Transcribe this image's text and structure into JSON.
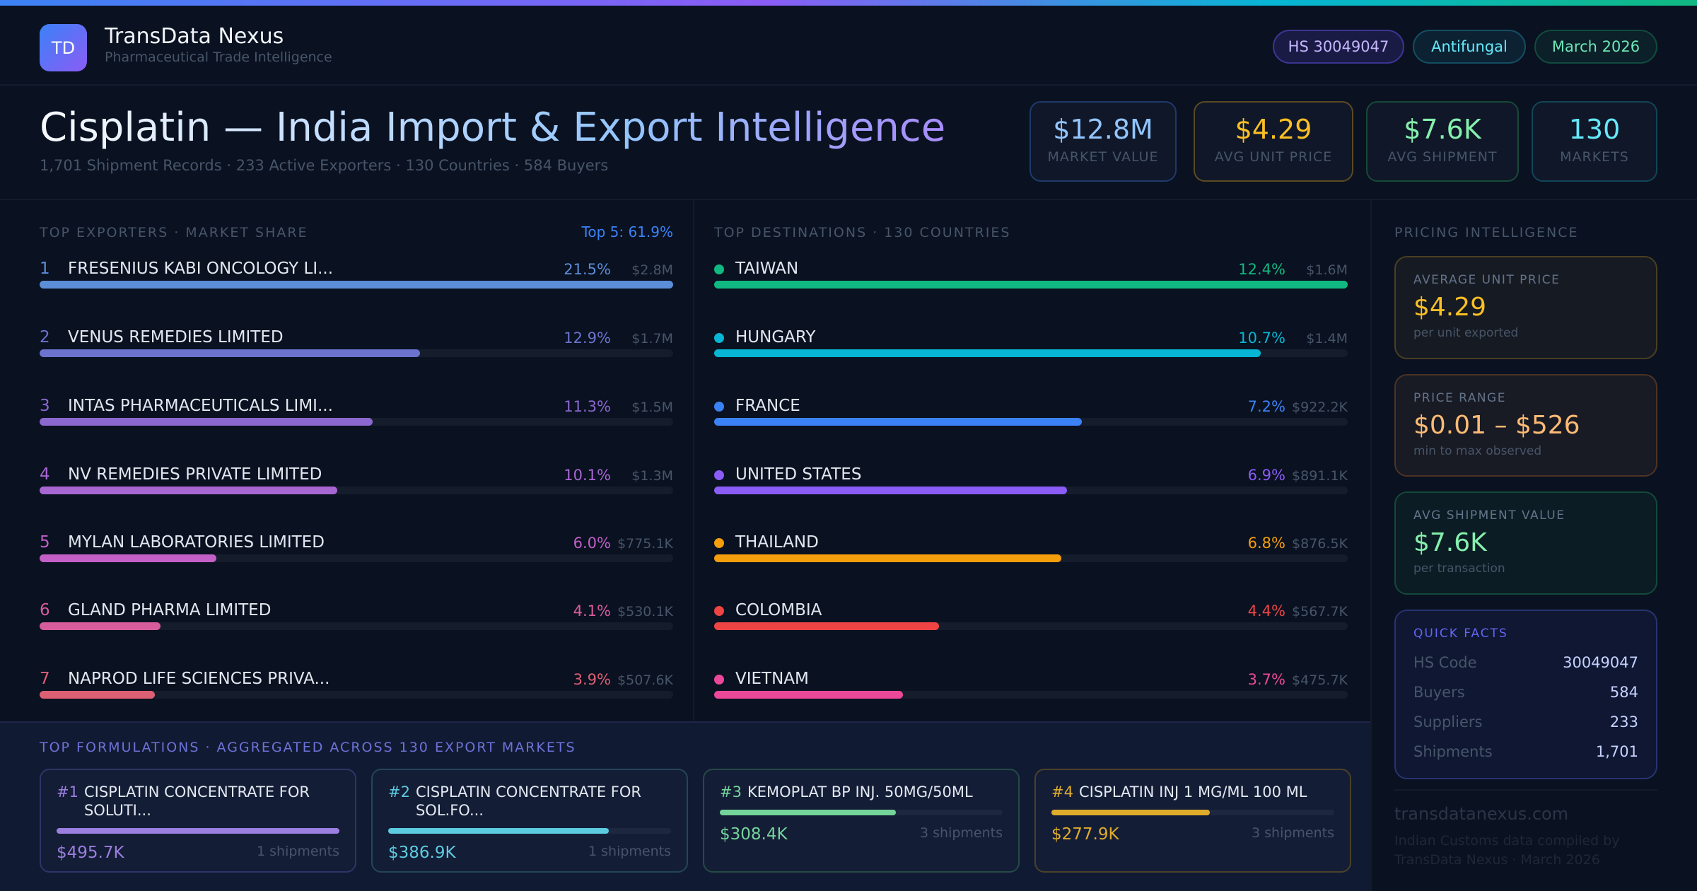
{
  "header": {
    "logo_text": "TD",
    "brand": "TransData Nexus",
    "tagline": "Pharmaceutical Trade Intelligence",
    "pills": [
      {
        "label": "HS 30049047",
        "color": "#c4b5fd"
      },
      {
        "label": "Antifungal",
        "color": "#67e8f9"
      },
      {
        "label": "March 2026",
        "color": "#6ee7b7"
      }
    ]
  },
  "hero": {
    "title": "Cisplatin — India Import & Export Intelligence",
    "subtitle": "1,701 Shipment Records · 233 Active Exporters · 130 Countries · 584 Buyers"
  },
  "kpis": [
    {
      "value": "$12.8M",
      "label": "MARKET VALUE",
      "color": "#93c5fd"
    },
    {
      "value": "$4.29",
      "label": "AVG UNIT PRICE",
      "color": "#fbbf24"
    },
    {
      "value": "$7.6K",
      "label": "AVG SHIPMENT",
      "color": "#86efac"
    },
    {
      "value": "130",
      "label": "MARKETS",
      "color": "#67e8f9"
    }
  ],
  "exporters": {
    "title": "TOP EXPORTERS · MARKET SHARE",
    "summary": "Top 5: 61.9%",
    "items": [
      {
        "rank": "1",
        "name": "FRESENIUS KABI ONCOLOGY LI...",
        "pct": "21.5%",
        "value": "$2.8M",
        "share": 21.5,
        "color": "#5b8dd9"
      },
      {
        "rank": "2",
        "name": "VENUS REMEDIES LIMITED",
        "pct": "12.9%",
        "value": "$1.7M",
        "share": 12.9,
        "color": "#6b73cf"
      },
      {
        "rank": "3",
        "name": "INTAS PHARMACEUTICALS LIMI...",
        "pct": "11.3%",
        "value": "$1.5M",
        "share": 11.3,
        "color": "#8b67d0"
      },
      {
        "rank": "4",
        "name": "NV REMEDIES PRIVATE LIMITED",
        "pct": "10.1%",
        "value": "$1.3M",
        "share": 10.1,
        "color": "#a866d2"
      },
      {
        "rank": "5",
        "name": "MYLAN LABORATORIES LIMITED",
        "pct": "6.0%",
        "value": "$775.1K",
        "share": 6.0,
        "color": "#c260c8"
      },
      {
        "rank": "6",
        "name": "GLAND PHARMA LIMITED",
        "pct": "4.1%",
        "value": "$530.1K",
        "share": 4.1,
        "color": "#d65c9c"
      },
      {
        "rank": "7",
        "name": "NAPROD LIFE SCIENCES PRIVA...",
        "pct": "3.9%",
        "value": "$507.6K",
        "share": 3.9,
        "color": "#dd5f73"
      }
    ]
  },
  "destinations": {
    "title": "TOP DESTINATIONS · 130 COUNTRIES",
    "items": [
      {
        "name": "TAIWAN",
        "pct": "12.4%",
        "value": "$1.6M",
        "share": 12.4,
        "color": "#10b981"
      },
      {
        "name": "HUNGARY",
        "pct": "10.7%",
        "value": "$1.4M",
        "share": 10.7,
        "color": "#06b6d4"
      },
      {
        "name": "FRANCE",
        "pct": "7.2%",
        "value": "$922.2K",
        "share": 7.2,
        "color": "#3b82f6"
      },
      {
        "name": "UNITED STATES",
        "pct": "6.9%",
        "value": "$891.1K",
        "share": 6.9,
        "color": "#8b5cf6"
      },
      {
        "name": "THAILAND",
        "pct": "6.8%",
        "value": "$876.5K",
        "share": 6.8,
        "color": "#f59e0b"
      },
      {
        "name": "COLOMBIA",
        "pct": "4.4%",
        "value": "$567.7K",
        "share": 4.4,
        "color": "#ef4444"
      },
      {
        "name": "VIETNAM",
        "pct": "3.7%",
        "value": "$475.7K",
        "share": 3.7,
        "color": "#ec4899"
      }
    ]
  },
  "formulations": {
    "title": "TOP FORMULATIONS · AGGREGATED ACROSS 130 EXPORT MARKETS",
    "items": [
      {
        "num": "#1",
        "name": "CISPLATIN CONCENTRATE FOR SOLUTI...",
        "value": "$495.7K",
        "amount": 495.7,
        "shipments": "1 shipments",
        "color": "#9b7fe0"
      },
      {
        "num": "#2",
        "name": "CISPLATIN CONCENTRATE FOR SOL.FO...",
        "value": "$386.9K",
        "amount": 386.9,
        "shipments": "1 shipments",
        "color": "#5ccbe0"
      },
      {
        "num": "#3",
        "name": "KEMOPLAT BP INJ. 50MG/50ML",
        "value": "$308.4K",
        "amount": 308.4,
        "shipments": "3 shipments",
        "color": "#74d49a"
      },
      {
        "num": "#4",
        "name": "CISPLATIN INJ 1 MG/ML 100 ML",
        "value": "$277.9K",
        "amount": 277.9,
        "shipments": "3 shipments",
        "color": "#e0ac2c"
      }
    ]
  },
  "pricing": {
    "title": "PRICING INTELLIGENCE",
    "cards": [
      {
        "label": "AVERAGE UNIT PRICE",
        "value": "$4.29",
        "sub": "per unit exported",
        "color": "#fbbf24"
      },
      {
        "label": "PRICE RANGE",
        "value": "$0.01 – $526",
        "sub": "min to max observed",
        "color": "#fdba74"
      },
      {
        "label": "AVG SHIPMENT VALUE",
        "value": "$7.6K",
        "sub": "per transaction",
        "color": "#86efac"
      }
    ],
    "quick_facts": {
      "title": "QUICK FACTS",
      "rows": [
        {
          "k": "HS Code",
          "v": "30049047"
        },
        {
          "k": "Buyers",
          "v": "584"
        },
        {
          "k": "Suppliers",
          "v": "233"
        },
        {
          "k": "Shipments",
          "v": "1,701"
        }
      ]
    },
    "website": "transdatanexus.com",
    "footer": "Indian Customs data compiled by TransData Nexus · March 2026"
  }
}
